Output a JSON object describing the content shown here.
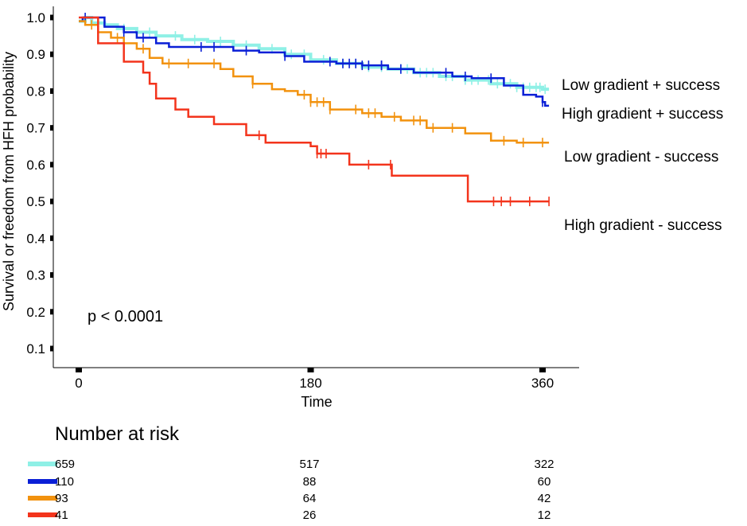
{
  "chart_data": {
    "type": "line",
    "subtype": "kaplan-meier",
    "xlabel": "Time",
    "ylabel": "Survival or freedom from HFH probability",
    "xlim": [
      0,
      365
    ],
    "ylim": [
      0.07,
      1.02
    ],
    "x_ticks": [
      0,
      180,
      360
    ],
    "x_tick_labels": [
      "0",
      "180",
      "360"
    ],
    "y_ticks": [
      0.1,
      0.2,
      0.3,
      0.4,
      0.5,
      0.6,
      0.7,
      0.8,
      0.9,
      1.0
    ],
    "y_tick_labels": [
      "0.1",
      "0.2",
      "0.3",
      "0.4",
      "0.5",
      "0.6",
      "0.7",
      "0.8",
      "0.9",
      "1.0"
    ],
    "grid": false,
    "annotation": "p < 0.0001",
    "series": [
      {
        "name": "Low gradient + success",
        "color": "#8ff0e6",
        "steps": [
          [
            0,
            0.99
          ],
          [
            5,
            1.0
          ],
          [
            10,
            0.985
          ],
          [
            20,
            0.98
          ],
          [
            30,
            0.97
          ],
          [
            45,
            0.96
          ],
          [
            60,
            0.95
          ],
          [
            80,
            0.94
          ],
          [
            100,
            0.935
          ],
          [
            120,
            0.925
          ],
          [
            140,
            0.915
          ],
          [
            160,
            0.9
          ],
          [
            180,
            0.885
          ],
          [
            200,
            0.875
          ],
          [
            220,
            0.865
          ],
          [
            240,
            0.86
          ],
          [
            260,
            0.85
          ],
          [
            280,
            0.84
          ],
          [
            300,
            0.83
          ],
          [
            320,
            0.82
          ],
          [
            340,
            0.81
          ],
          [
            360,
            0.805
          ],
          [
            365,
            0.805
          ]
        ],
        "censor_x": [
          15,
          35,
          55,
          75,
          90,
          110,
          130,
          150,
          165,
          175,
          190,
          205,
          215,
          225,
          235,
          250,
          255,
          265,
          270,
          275,
          285,
          290,
          300,
          305,
          310,
          318,
          325,
          335,
          340,
          345,
          350,
          355,
          358,
          362
        ]
      },
      {
        "name": "High gradient + success",
        "color": "#0a1fd6",
        "steps": [
          [
            0,
            0.99
          ],
          [
            3,
            1.0
          ],
          [
            20,
            0.975
          ],
          [
            35,
            0.96
          ],
          [
            45,
            0.945
          ],
          [
            60,
            0.93
          ],
          [
            70,
            0.92
          ],
          [
            120,
            0.91
          ],
          [
            140,
            0.905
          ],
          [
            160,
            0.895
          ],
          [
            175,
            0.88
          ],
          [
            200,
            0.875
          ],
          [
            220,
            0.87
          ],
          [
            240,
            0.86
          ],
          [
            260,
            0.85
          ],
          [
            290,
            0.84
          ],
          [
            305,
            0.835
          ],
          [
            330,
            0.815
          ],
          [
            345,
            0.79
          ],
          [
            355,
            0.785
          ],
          [
            360,
            0.77
          ],
          [
            362,
            0.76
          ]
        ],
        "censor_x": [
          5,
          35,
          50,
          95,
          105,
          130,
          160,
          195,
          205,
          210,
          215,
          220,
          225,
          235,
          235,
          250,
          285,
          300,
          320,
          360
        ]
      },
      {
        "name": "Low gradient - success",
        "color": "#f2920e",
        "steps": [
          [
            0,
            0.99
          ],
          [
            5,
            0.98
          ],
          [
            15,
            0.96
          ],
          [
            25,
            0.945
          ],
          [
            35,
            0.93
          ],
          [
            45,
            0.915
          ],
          [
            55,
            0.89
          ],
          [
            65,
            0.875
          ],
          [
            110,
            0.86
          ],
          [
            120,
            0.84
          ],
          [
            135,
            0.82
          ],
          [
            150,
            0.805
          ],
          [
            160,
            0.8
          ],
          [
            170,
            0.79
          ],
          [
            180,
            0.77
          ],
          [
            195,
            0.75
          ],
          [
            220,
            0.74
          ],
          [
            235,
            0.73
          ],
          [
            250,
            0.72
          ],
          [
            270,
            0.7
          ],
          [
            300,
            0.685
          ],
          [
            320,
            0.665
          ],
          [
            340,
            0.66
          ],
          [
            365,
            0.66
          ]
        ],
        "censor_x": [
          10,
          30,
          50,
          70,
          85,
          105,
          135,
          175,
          180,
          185,
          190,
          195,
          215,
          225,
          230,
          245,
          260,
          265,
          275,
          290,
          330,
          345,
          360
        ]
      },
      {
        "name": "High gradient - success",
        "color": "#f3341c",
        "steps": [
          [
            0,
            1.0
          ],
          [
            15,
            0.93
          ],
          [
            35,
            0.88
          ],
          [
            50,
            0.85
          ],
          [
            55,
            0.82
          ],
          [
            60,
            0.78
          ],
          [
            75,
            0.75
          ],
          [
            85,
            0.73
          ],
          [
            105,
            0.71
          ],
          [
            130,
            0.68
          ],
          [
            145,
            0.66
          ],
          [
            180,
            0.65
          ],
          [
            185,
            0.63
          ],
          [
            210,
            0.6
          ],
          [
            230,
            0.6
          ],
          [
            243,
            0.57
          ],
          [
            290,
            0.57
          ],
          [
            302,
            0.5
          ],
          [
            365,
            0.5
          ]
        ],
        "censor_x": [
          140,
          185,
          188,
          192,
          225,
          242,
          322,
          328,
          335,
          350,
          365
        ]
      }
    ],
    "risk_table": {
      "title": "Number at risk",
      "time_points": [
        0,
        180,
        360
      ],
      "rows": [
        {
          "series": "Low gradient + success",
          "color": "#8ff0e6",
          "values": [
            "659",
            "517",
            "322"
          ]
        },
        {
          "series": "High gradient + success",
          "color": "#0a1fd6",
          "values": [
            "110",
            "88",
            "60"
          ]
        },
        {
          "series": "Low gradient - success",
          "color": "#f2920e",
          "values": [
            "93",
            "64",
            "42"
          ]
        },
        {
          "series": "High gradient - success",
          "color": "#f3341c",
          "values": [
            "41",
            "26",
            "12"
          ]
        }
      ]
    }
  }
}
